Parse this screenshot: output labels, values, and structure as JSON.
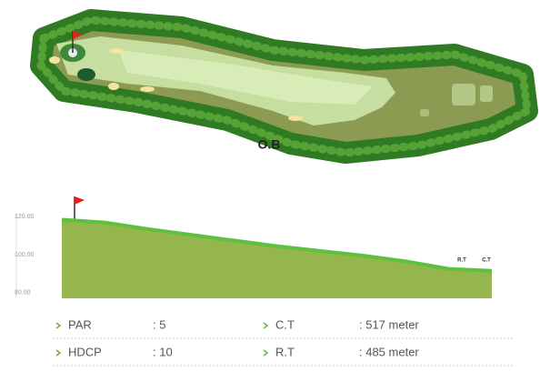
{
  "hole": {
    "ob_label": "O.B"
  },
  "profile": {
    "type": "area",
    "values": [
      118.5,
      117,
      113.5,
      110.5,
      107.5,
      104.5,
      102,
      99.5,
      96.5,
      92.5,
      91.5
    ],
    "ylim": [
      76,
      124
    ],
    "yticks": [
      {
        "value": 80,
        "label": "80.00"
      },
      {
        "value": 100,
        "label": "100.00"
      },
      {
        "value": 120,
        "label": "120.00"
      }
    ],
    "tee_labels": [
      "R.T",
      "C.T"
    ]
  },
  "info": {
    "rows": [
      [
        "PAR",
        ": 5",
        "C.T",
        ": 517 meter"
      ],
      [
        "HDCP",
        ": 10",
        "R.T",
        ": 485 meter"
      ]
    ]
  }
}
